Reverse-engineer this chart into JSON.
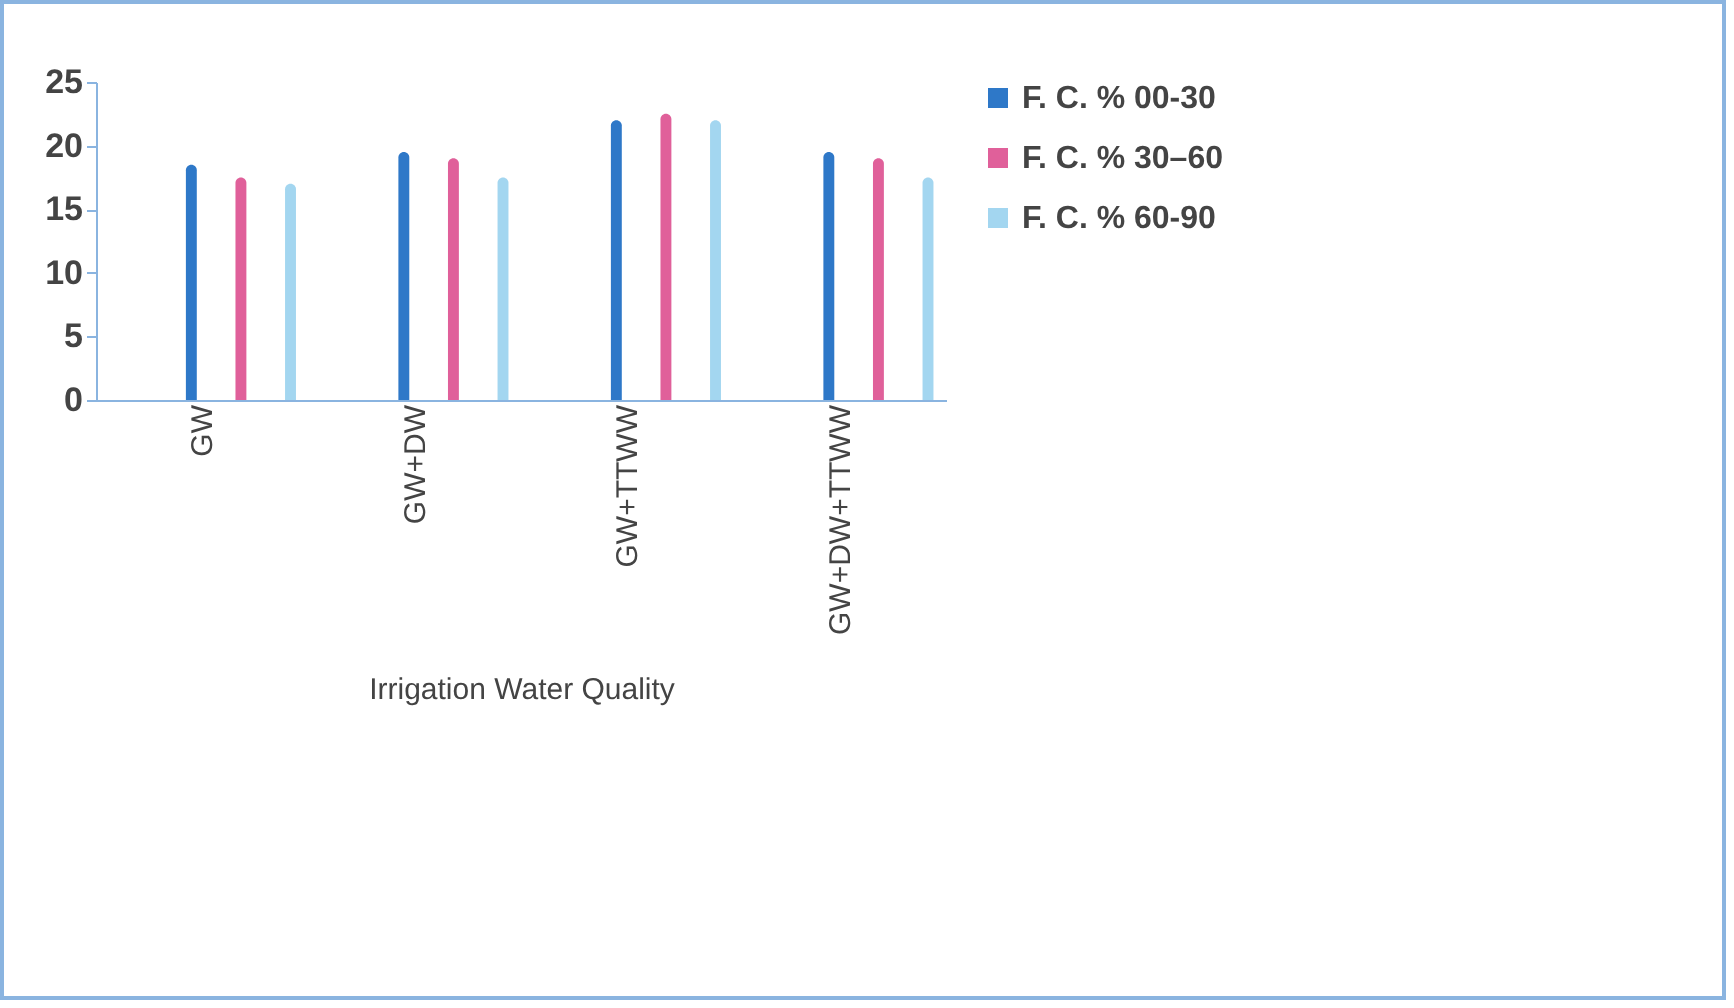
{
  "chart_data": {
    "type": "bar",
    "xlabel": "Irrigation Water Quality",
    "categories": [
      "GW",
      "GW+DW",
      "GW+TTWW",
      "GW+DW+TTWW"
    ],
    "series": [
      {
        "name": "F. C. % 00-30",
        "color": "#2e78c8",
        "values": [
          18.5,
          19.5,
          22,
          19.5
        ]
      },
      {
        "name": "F. C. % 30–60",
        "color": "#e0609a",
        "values": [
          17.5,
          19,
          22.5,
          19
        ]
      },
      {
        "name": "F. C. % 60-90",
        "color": "#a3d6f0",
        "values": [
          17,
          17.5,
          22,
          17.5
        ]
      }
    ],
    "ylim": [
      0,
      25
    ],
    "yticks": [
      0,
      5,
      10,
      15,
      20,
      25
    ],
    "grid": false,
    "legend": "right"
  }
}
